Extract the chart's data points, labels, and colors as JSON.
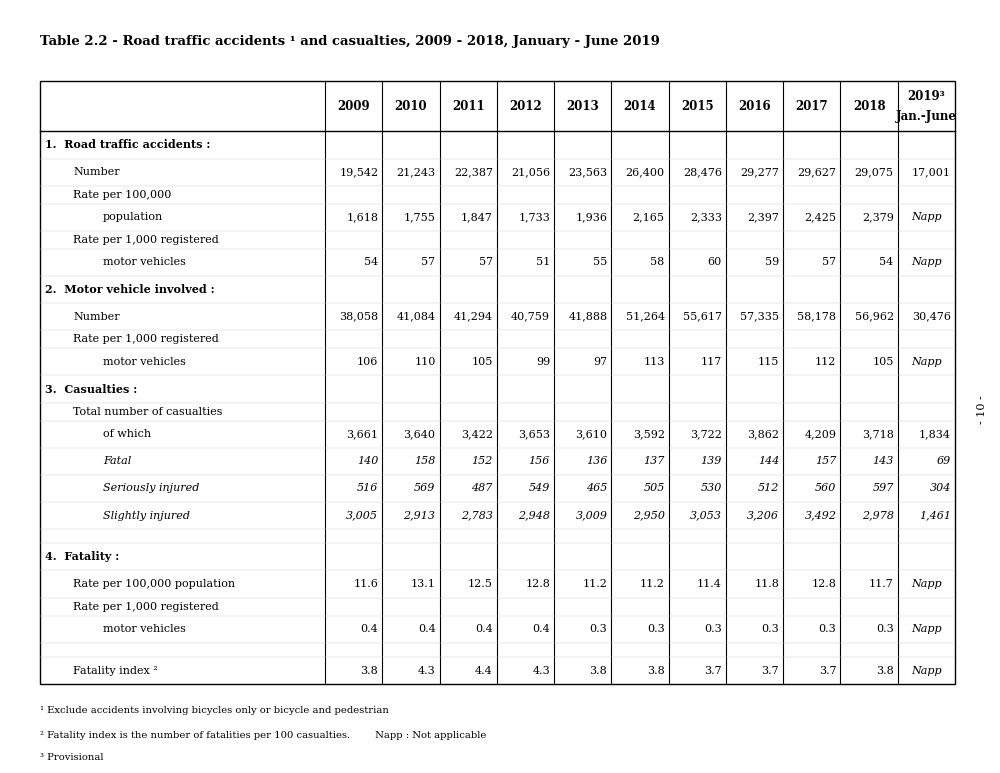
{
  "title": "Table 2.2 - Road traffic accidents ¹ and casualties, 2009 - 2018, January - June 2019",
  "columns": [
    "",
    "2009",
    "2010",
    "2011",
    "2012",
    "2013",
    "2014",
    "2015",
    "2016",
    "2017",
    "2018",
    "2019³\nJan.-June"
  ],
  "footnote1": "¹ Exclude accidents involving bicycles only or bicycle and pedestrian",
  "footnote2": "² Fatality index is the number of fatalities per 100 casualties.        Napp : Not applicable",
  "footnote3": "³ Provisional",
  "page_note": "- 10 -",
  "rows": [
    {
      "label": "1.  Road traffic accidents :",
      "level": 0,
      "bold": true,
      "italic": false,
      "values": [
        "",
        "",
        "",
        "",
        "",
        "",
        "",
        "",
        "",
        "",
        ""
      ]
    },
    {
      "label": "Number",
      "level": 1,
      "bold": false,
      "italic": false,
      "values": [
        "19,542",
        "21,243",
        "22,387",
        "21,056",
        "23,563",
        "26,400",
        "28,476",
        "29,277",
        "29,627",
        "29,075",
        "17,001"
      ]
    },
    {
      "label": "Rate per 100,000",
      "level": 1,
      "bold": false,
      "italic": false,
      "values": [
        "",
        "",
        "",
        "",
        "",
        "",
        "",
        "",
        "",
        "",
        ""
      ]
    },
    {
      "label": "population",
      "level": 2,
      "bold": false,
      "italic": false,
      "values": [
        "1,618",
        "1,755",
        "1,847",
        "1,733",
        "1,936",
        "2,165",
        "2,333",
        "2,397",
        "2,425",
        "2,379",
        "Napp"
      ]
    },
    {
      "label": "Rate per 1,000 registered",
      "level": 1,
      "bold": false,
      "italic": false,
      "values": [
        "",
        "",
        "",
        "",
        "",
        "",
        "",
        "",
        "",
        "",
        ""
      ]
    },
    {
      "label": "motor vehicles",
      "level": 2,
      "bold": false,
      "italic": false,
      "values": [
        "54",
        "57",
        "57",
        "51",
        "55",
        "58",
        "60",
        "59",
        "57",
        "54",
        "Napp"
      ]
    },
    {
      "label": "2.  Motor vehicle involved :",
      "level": 0,
      "bold": true,
      "italic": false,
      "values": [
        "",
        "",
        "",
        "",
        "",
        "",
        "",
        "",
        "",
        "",
        ""
      ]
    },
    {
      "label": "Number",
      "level": 1,
      "bold": false,
      "italic": false,
      "values": [
        "38,058",
        "41,084",
        "41,294",
        "40,759",
        "41,888",
        "51,264",
        "55,617",
        "57,335",
        "58,178",
        "56,962",
        "30,476"
      ]
    },
    {
      "label": "Rate per 1,000 registered",
      "level": 1,
      "bold": false,
      "italic": false,
      "values": [
        "",
        "",
        "",
        "",
        "",
        "",
        "",
        "",
        "",
        "",
        ""
      ]
    },
    {
      "label": "motor vehicles",
      "level": 2,
      "bold": false,
      "italic": false,
      "values": [
        "106",
        "110",
        "105",
        "99",
        "97",
        "113",
        "117",
        "115",
        "112",
        "105",
        "Napp"
      ]
    },
    {
      "label": "3.  Casualties :",
      "level": 0,
      "bold": true,
      "italic": false,
      "values": [
        "",
        "",
        "",
        "",
        "",
        "",
        "",
        "",
        "",
        "",
        ""
      ]
    },
    {
      "label": "Total number of casualties",
      "level": 1,
      "bold": false,
      "italic": false,
      "values": [
        "",
        "",
        "",
        "",
        "",
        "",
        "",
        "",
        "",
        "",
        ""
      ]
    },
    {
      "label": "of which",
      "level": 2,
      "bold": false,
      "italic": false,
      "values": [
        "3,661",
        "3,640",
        "3,422",
        "3,653",
        "3,610",
        "3,592",
        "3,722",
        "3,862",
        "4,209",
        "3,718",
        "1,834"
      ]
    },
    {
      "label": "Fatal",
      "level": 2,
      "bold": false,
      "italic": true,
      "values": [
        "140",
        "158",
        "152",
        "156",
        "136",
        "137",
        "139",
        "144",
        "157",
        "143",
        "69"
      ]
    },
    {
      "label": "Seriously injured",
      "level": 2,
      "bold": false,
      "italic": true,
      "values": [
        "516",
        "569",
        "487",
        "549",
        "465",
        "505",
        "530",
        "512",
        "560",
        "597",
        "304"
      ]
    },
    {
      "label": "Slightly injured",
      "level": 2,
      "bold": false,
      "italic": true,
      "values": [
        "3,005",
        "2,913",
        "2,783",
        "2,948",
        "3,009",
        "2,950",
        "3,053",
        "3,206",
        "3,492",
        "2,978",
        "1,461"
      ]
    },
    {
      "label": "",
      "level": 0,
      "bold": false,
      "italic": false,
      "values": [
        "",
        "",
        "",
        "",
        "",
        "",
        "",
        "",
        "",
        "",
        ""
      ]
    },
    {
      "label": "4.  Fatality :",
      "level": 0,
      "bold": true,
      "italic": false,
      "values": [
        "",
        "",
        "",
        "",
        "",
        "",
        "",
        "",
        "",
        "",
        ""
      ]
    },
    {
      "label": "Rate per 100,000 population",
      "level": 1,
      "bold": false,
      "italic": false,
      "values": [
        "11.6",
        "13.1",
        "12.5",
        "12.8",
        "11.2",
        "11.2",
        "11.4",
        "11.8",
        "12.8",
        "11.7",
        "Napp"
      ]
    },
    {
      "label": "Rate per 1,000 registered",
      "level": 1,
      "bold": false,
      "italic": false,
      "values": [
        "",
        "",
        "",
        "",
        "",
        "",
        "",
        "",
        "",
        "",
        ""
      ]
    },
    {
      "label": "motor vehicles",
      "level": 2,
      "bold": false,
      "italic": false,
      "values": [
        "0.4",
        "0.4",
        "0.4",
        "0.4",
        "0.3",
        "0.3",
        "0.3",
        "0.3",
        "0.3",
        "0.3",
        "Napp"
      ]
    },
    {
      "label": "",
      "level": 0,
      "bold": false,
      "italic": false,
      "values": [
        "",
        "",
        "",
        "",
        "",
        "",
        "",
        "",
        "",
        "",
        ""
      ]
    },
    {
      "label": "Fatality index ²",
      "level": 1,
      "bold": false,
      "italic": false,
      "values": [
        "3.8",
        "4.3",
        "4.4",
        "4.3",
        "3.8",
        "3.8",
        "3.7",
        "3.7",
        "3.7",
        "3.8",
        "Napp"
      ]
    }
  ]
}
